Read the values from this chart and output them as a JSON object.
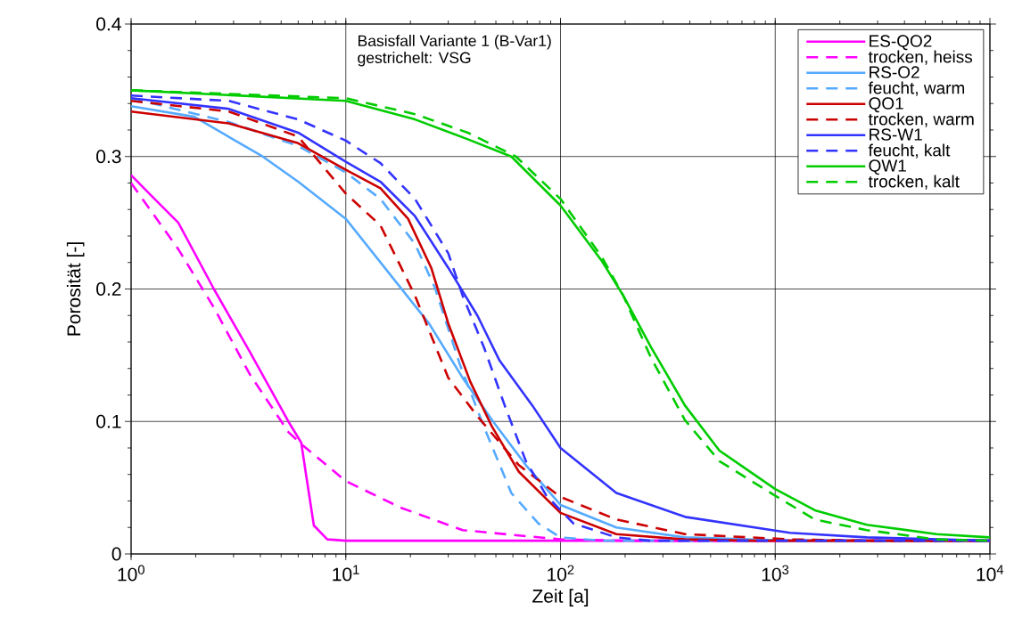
{
  "chart_data": {
    "type": "line",
    "xlabel": "Zeit [a]",
    "ylabel": "Porosität [-]",
    "annotations": [
      "Basisfall Variante 1 (B-Var1)",
      "gestrichelt: VSG"
    ],
    "log": "x",
    "grid": true,
    "legend": "top right",
    "xlim": [
      1,
      10000
    ],
    "ylim": [
      0,
      0.4
    ],
    "xticks": [
      {
        "value": 1,
        "label": "10$^{0}$"
      },
      {
        "value": 10,
        "label": "10$^{1}$"
      },
      {
        "value": 100,
        "label": "10$^{2}$"
      },
      {
        "value": 1000,
        "label": "10$^{3}$"
      },
      {
        "value": 10000,
        "label": "10$^{4}$"
      }
    ],
    "yticks": [
      0,
      0.1,
      0.2,
      0.3,
      0.4
    ],
    "series": [
      {
        "name": "ES-QO2",
        "color": "#ff00ff",
        "line_style": "solid",
        "x": [
          1,
          1.25,
          1.66,
          2.43,
          3.56,
          5.4,
          6.2,
          6.6,
          7.1,
          8.2,
          10,
          100,
          1000,
          10000
        ],
        "values": [
          0.286,
          0.27,
          0.25,
          0.2,
          0.153,
          0.1,
          0.084,
          0.055,
          0.0215,
          0.011,
          0.01,
          0.01,
          0.01,
          0.01
        ]
      },
      {
        "name": "trocken, heiss",
        "color": "#ff00ff",
        "line_style": "dashed",
        "x": [
          1,
          1.66,
          2.43,
          3.56,
          5.4,
          6.3,
          10,
          18,
          35,
          100,
          200,
          1000,
          10000
        ],
        "values": [
          0.28,
          0.23,
          0.186,
          0.136,
          0.092,
          0.082,
          0.055,
          0.035,
          0.018,
          0.011,
          0.01,
          0.01,
          0.01
        ]
      },
      {
        "name": "RS-O2",
        "color": "#55aaff",
        "line_style": "solid",
        "x": [
          1,
          1.97,
          4.1,
          6,
          10,
          24.4,
          35,
          48,
          69,
          100,
          182,
          380,
          1170,
          10000
        ],
        "values": [
          0.338,
          0.33,
          0.3,
          0.281,
          0.253,
          0.174,
          0.133,
          0.101,
          0.067,
          0.037,
          0.02,
          0.0125,
          0.01,
          0.01
        ]
      },
      {
        "name": "feucht, warm",
        "color": "#55aaff",
        "line_style": "dashed",
        "x": [
          1,
          2.85,
          6,
          10,
          14.5,
          21,
          26,
          34,
          44,
          59,
          79,
          100,
          155,
          1000,
          10000
        ],
        "values": [
          0.344,
          0.326,
          0.308,
          0.288,
          0.268,
          0.234,
          0.201,
          0.143,
          0.096,
          0.046,
          0.023,
          0.0125,
          0.01,
          0.01,
          0.01
        ]
      },
      {
        "name": "QO1",
        "color": "#cc0000",
        "line_style": "solid",
        "x": [
          1,
          2.85,
          6,
          10,
          14.5,
          19.5,
          25,
          30,
          38,
          48,
          64,
          100,
          182,
          380,
          800,
          10000
        ],
        "values": [
          0.334,
          0.325,
          0.31,
          0.29,
          0.276,
          0.253,
          0.216,
          0.174,
          0.13,
          0.096,
          0.062,
          0.031,
          0.015,
          0.011,
          0.01,
          0.01
        ]
      },
      {
        "name": "trocken, warm",
        "color": "#cc0000",
        "line_style": "dashed",
        "x": [
          1,
          2.85,
          6,
          10,
          14.5,
          21,
          30,
          41,
          64,
          100,
          182,
          380,
          1170,
          3000,
          10000
        ],
        "values": [
          0.342,
          0.334,
          0.315,
          0.272,
          0.248,
          0.195,
          0.133,
          0.104,
          0.067,
          0.043,
          0.026,
          0.015,
          0.011,
          0.01,
          0.01
        ]
      },
      {
        "name": "RS-W1",
        "color": "#3333ff",
        "line_style": "solid",
        "x": [
          1,
          2.85,
          6,
          10,
          14.5,
          21,
          30,
          41,
          52,
          74,
          100,
          182,
          380,
          1170,
          2670,
          10000
        ],
        "values": [
          0.344,
          0.336,
          0.318,
          0.296,
          0.281,
          0.255,
          0.216,
          0.18,
          0.146,
          0.112,
          0.08,
          0.046,
          0.028,
          0.016,
          0.0125,
          0.01
        ]
      },
      {
        "name": "feucht, kalt",
        "color": "#3333ff",
        "line_style": "dashed",
        "x": [
          1,
          2.85,
          6,
          10,
          14.5,
          21,
          30,
          35,
          44,
          55,
          69,
          86,
          115,
          182,
          263,
          10000
        ],
        "values": [
          0.346,
          0.342,
          0.328,
          0.312,
          0.295,
          0.268,
          0.227,
          0.195,
          0.156,
          0.112,
          0.07,
          0.044,
          0.023,
          0.0125,
          0.01,
          0.01
        ]
      },
      {
        "name": "QW1",
        "color": "#00cc00",
        "line_style": "solid",
        "x": [
          1,
          10,
          21,
          37,
          59,
          100,
          156,
          196,
          264,
          380,
          550,
          1000,
          1530,
          2670,
          5630,
          10000
        ],
        "values": [
          0.35,
          0.342,
          0.328,
          0.313,
          0.3,
          0.263,
          0.221,
          0.195,
          0.156,
          0.112,
          0.078,
          0.049,
          0.033,
          0.022,
          0.015,
          0.0125
        ]
      },
      {
        "name": "trocken, kalt",
        "color": "#00cc00",
        "line_style": "dashed",
        "x": [
          1,
          10,
          21,
          37,
          62,
          100,
          156,
          196,
          264,
          380,
          550,
          1000,
          1530,
          2670,
          5630,
          10000
        ],
        "values": [
          0.35,
          0.344,
          0.332,
          0.318,
          0.3,
          0.268,
          0.224,
          0.195,
          0.148,
          0.101,
          0.07,
          0.044,
          0.026,
          0.018,
          0.011,
          0.01
        ]
      }
    ]
  }
}
